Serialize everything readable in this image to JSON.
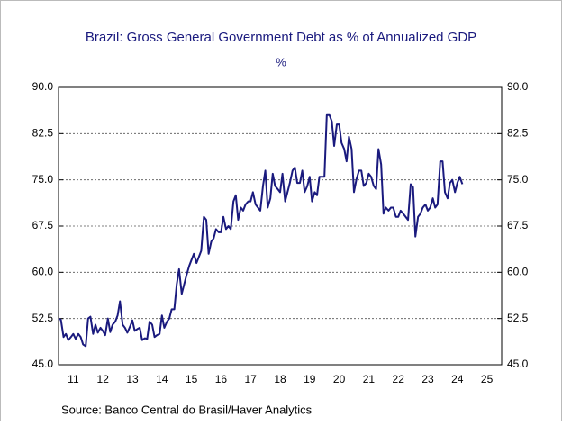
{
  "chart_data": {
    "type": "line",
    "title": "Brazil: Gross General Government Debt as % of Annualized GDP",
    "subtitle": "%",
    "source": "Source:  Banco Central do Brasil/Haver Analytics",
    "color": "#1a1a7e",
    "grid": true,
    "xlim": [
      11,
      26
    ],
    "xticks": [
      {
        "value": 11.5,
        "label": "11"
      },
      {
        "value": 12.5,
        "label": "12"
      },
      {
        "value": 13.5,
        "label": "13"
      },
      {
        "value": 14.5,
        "label": "14"
      },
      {
        "value": 15.5,
        "label": "15"
      },
      {
        "value": 16.5,
        "label": "16"
      },
      {
        "value": 17.5,
        "label": "17"
      },
      {
        "value": 18.5,
        "label": "18"
      },
      {
        "value": 19.5,
        "label": "19"
      },
      {
        "value": 20.5,
        "label": "20"
      },
      {
        "value": 21.5,
        "label": "21"
      },
      {
        "value": 22.5,
        "label": "22"
      },
      {
        "value": 23.5,
        "label": "23"
      },
      {
        "value": 24.5,
        "label": "24"
      },
      {
        "value": 25.5,
        "label": "25"
      }
    ],
    "ylim": [
      45,
      90
    ],
    "yticks": [
      {
        "value": 45,
        "label": "45.0"
      },
      {
        "value": 52.5,
        "label": "52.5"
      },
      {
        "value": 60,
        "label": "60.0"
      },
      {
        "value": 67.5,
        "label": "67.5"
      },
      {
        "value": 75,
        "label": "75.0"
      },
      {
        "value": 82.5,
        "label": "82.5"
      },
      {
        "value": 90,
        "label": "90.0"
      }
    ],
    "x": [
      11,
      11.08,
      11.17,
      11.25,
      11.33,
      11.42,
      11.5,
      11.58,
      11.67,
      11.75,
      11.83,
      11.92,
      12,
      12.08,
      12.17,
      12.25,
      12.33,
      12.42,
      12.5,
      12.58,
      12.67,
      12.75,
      12.83,
      12.92,
      13,
      13.08,
      13.17,
      13.25,
      13.33,
      13.42,
      13.5,
      13.58,
      13.67,
      13.75,
      13.83,
      13.92,
      14,
      14.08,
      14.17,
      14.25,
      14.33,
      14.42,
      14.5,
      14.58,
      14.67,
      14.75,
      14.83,
      14.92,
      15,
      15.08,
      15.17,
      15.25,
      15.33,
      15.42,
      15.5,
      15.58,
      15.67,
      15.75,
      15.83,
      15.92,
      16,
      16.08,
      16.17,
      16.25,
      16.33,
      16.42,
      16.5,
      16.58,
      16.67,
      16.75,
      16.83,
      16.92,
      17,
      17.08,
      17.17,
      17.25,
      17.33,
      17.42,
      17.5,
      17.58,
      17.67,
      17.75,
      17.83,
      17.92,
      18,
      18.08,
      18.17,
      18.25,
      18.33,
      18.42,
      18.5,
      18.58,
      18.67,
      18.75,
      18.83,
      18.92,
      19,
      19.08,
      19.17,
      19.25,
      19.33,
      19.42,
      19.5,
      19.58,
      19.67,
      19.75,
      19.83,
      19.92,
      20,
      20.08,
      20.17,
      20.25,
      20.33,
      20.42,
      20.5,
      20.58,
      20.67,
      20.75,
      20.83,
      20.92,
      21,
      21.08,
      21.17,
      21.25,
      21.33,
      21.42,
      21.5,
      21.58,
      21.67,
      21.75,
      21.83,
      21.92,
      22,
      22.08,
      22.17,
      22.25,
      22.33,
      22.42,
      22.5,
      22.58,
      22.67,
      22.75,
      22.83,
      22.92,
      23,
      23.08,
      23.17,
      23.25,
      23.33,
      23.42,
      23.5,
      23.58,
      23.67,
      23.75,
      23.83,
      23.92,
      24,
      24.08,
      24.17,
      24.25,
      24.33,
      24.42,
      24.5,
      24.58,
      24.67
    ],
    "values": [
      52.5,
      52.3,
      49.5,
      50,
      49,
      49.5,
      50,
      49.2,
      50,
      49.5,
      48.3,
      48,
      52.5,
      52.8,
      50,
      51.5,
      50.2,
      51,
      50.5,
      49.8,
      52.5,
      50.3,
      51.5,
      52,
      53,
      55.3,
      51.5,
      51,
      50.2,
      51.2,
      52.2,
      50.5,
      50.8,
      51,
      49,
      49.3,
      49.2,
      52,
      51.5,
      49.5,
      49.8,
      50,
      53,
      51,
      52,
      52.5,
      54,
      54,
      58,
      60.5,
      56.5,
      58,
      59.5,
      61,
      62,
      63,
      61.5,
      62.5,
      63.5,
      69,
      68.5,
      63,
      65,
      65.5,
      67,
      66.5,
      66.5,
      69,
      67,
      67.5,
      67,
      71.5,
      72.5,
      68.5,
      70.5,
      70,
      71,
      71.5,
      71.5,
      73,
      71,
      70.5,
      70,
      74,
      76.5,
      70.5,
      72,
      76,
      74,
      73.5,
      73,
      76,
      71.5,
      73,
      74.5,
      76.5,
      77,
      74.5,
      74.5,
      76.5,
      73,
      74,
      75.5,
      71.5,
      73,
      72.5,
      75.5,
      75.5,
      75.5,
      85.5,
      85.5,
      84.5,
      80.5,
      84,
      84,
      81,
      80,
      78,
      82,
      80,
      73,
      75,
      76.5,
      76.5,
      74,
      74.5,
      76,
      75.5,
      74,
      73.5,
      80,
      77.5,
      69.5,
      70.5,
      70,
      70.5,
      70.5,
      69,
      69,
      70,
      69.5,
      69,
      68.5,
      74.3,
      73.8,
      65.8,
      69,
      69.5,
      70.5,
      71,
      70,
      70.5,
      72,
      70.5,
      71,
      78,
      78,
      73,
      72,
      74.5,
      75,
      73,
      74.5,
      75.5,
      74.3
    ]
  }
}
